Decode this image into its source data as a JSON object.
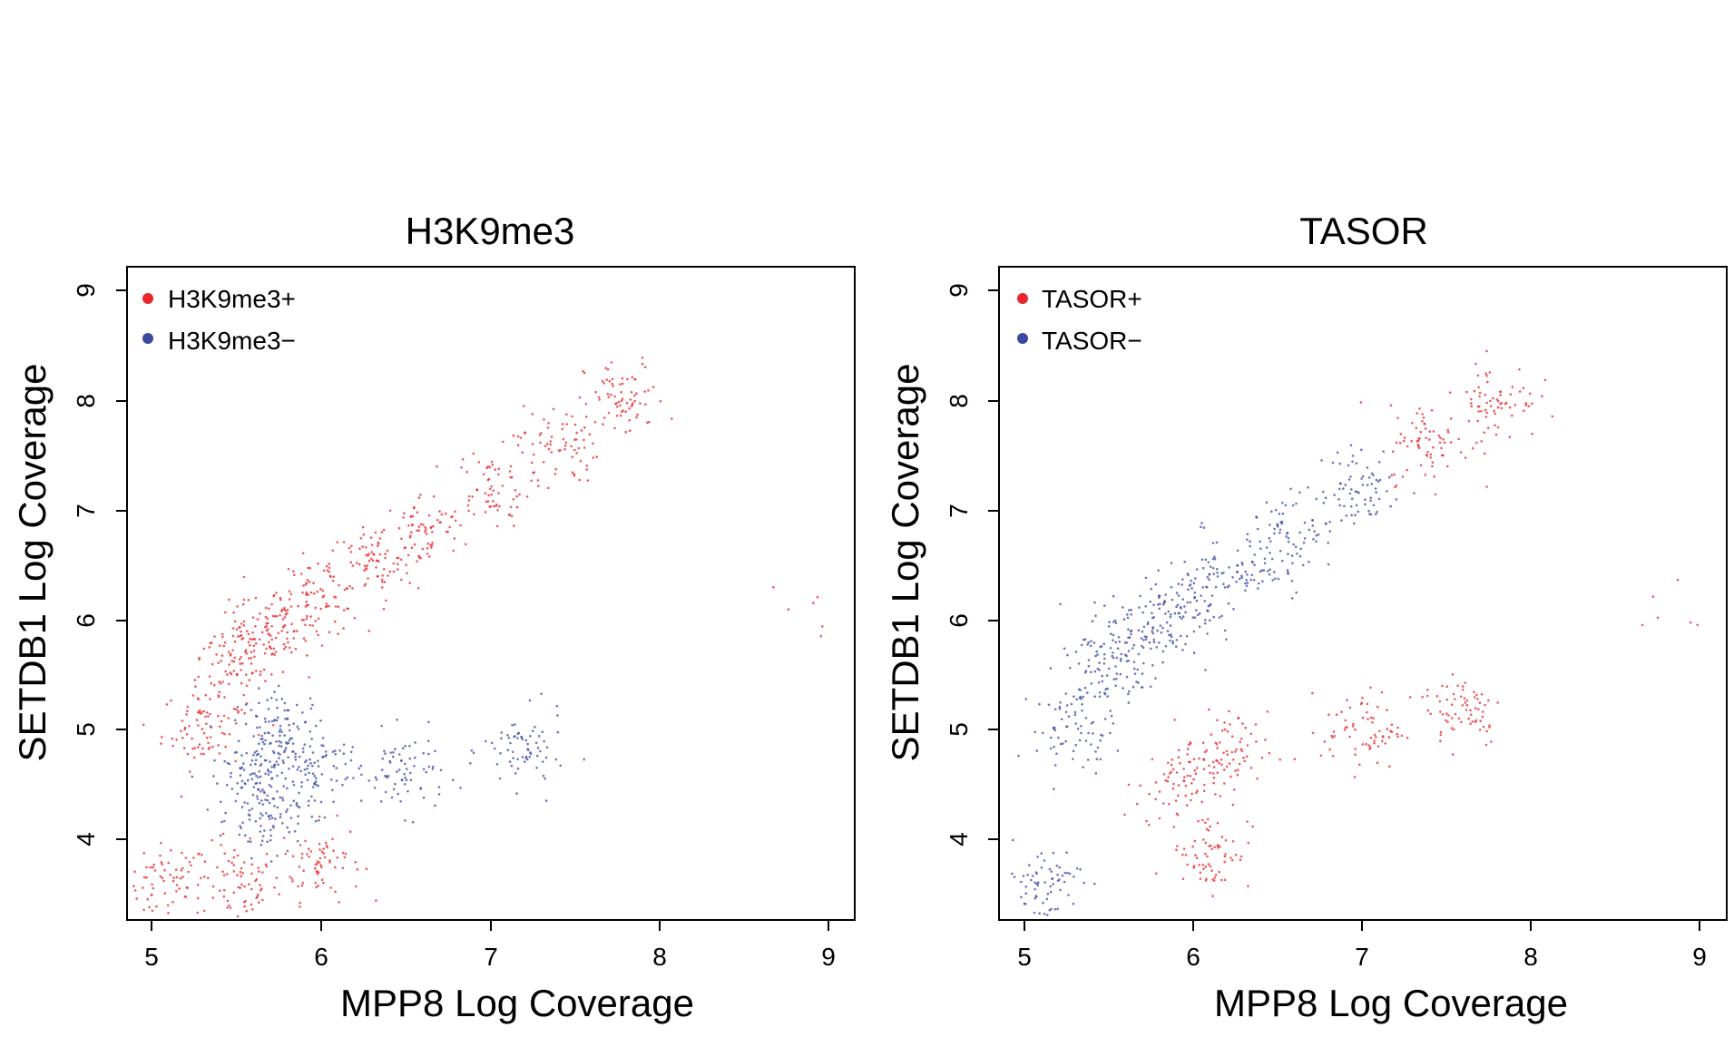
{
  "chart_data": [
    {
      "type": "scatter",
      "title": "H3K9me3",
      "xlabel": "MPP8 Log Coverage",
      "ylabel": "SETDB1 Log Coverage",
      "xlim": [
        4.85,
        9.15
      ],
      "ylim": [
        3.3,
        9.2
      ],
      "xticks": [
        "5",
        "6",
        "7",
        "8",
        "9"
      ],
      "yticks": [
        "4",
        "5",
        "6",
        "7",
        "8",
        "9"
      ],
      "legend_position": "top-left",
      "series": [
        {
          "name": "H3K9me3+",
          "color": "#e8262b",
          "summary_points": [
            [
              5.1,
              3.6
            ],
            [
              5.5,
              3.6
            ],
            [
              6.0,
              3.8
            ],
            [
              5.3,
              5.0
            ],
            [
              5.45,
              5.5
            ],
            [
              5.6,
              5.8
            ],
            [
              5.8,
              6.0
            ],
            [
              6.0,
              6.2
            ],
            [
              6.3,
              6.5
            ],
            [
              6.6,
              6.8
            ],
            [
              7.0,
              7.2
            ],
            [
              7.4,
              7.6
            ],
            [
              7.8,
              8.0
            ],
            [
              8.8,
              6.1
            ]
          ]
        },
        {
          "name": "H3K9me3−",
          "color": "#3a4aa0",
          "summary_points": [
            [
              5.6,
              4.5
            ],
            [
              5.7,
              4.8
            ],
            [
              5.8,
              5.0
            ],
            [
              6.0,
              4.6
            ],
            [
              6.5,
              4.6
            ],
            [
              7.2,
              4.8
            ],
            [
              5.7,
              4.2
            ]
          ]
        }
      ]
    },
    {
      "type": "scatter",
      "title": "TASOR",
      "xlabel": "MPP8 Log Coverage",
      "ylabel": "SETDB1 Log Coverage",
      "xlim": [
        4.85,
        9.15
      ],
      "ylim": [
        3.3,
        9.2
      ],
      "xticks": [
        "5",
        "6",
        "7",
        "8",
        "9"
      ],
      "yticks": [
        "4",
        "5",
        "6",
        "7",
        "8",
        "9"
      ],
      "legend_position": "top-left",
      "series": [
        {
          "name": "TASOR+",
          "color": "#e8262b",
          "summary_points": [
            [
              6.1,
              3.9
            ],
            [
              5.9,
              4.5
            ],
            [
              6.2,
              4.8
            ],
            [
              7.0,
              5.0
            ],
            [
              7.6,
              5.2
            ],
            [
              7.4,
              7.6
            ],
            [
              7.8,
              8.0
            ],
            [
              8.8,
              6.1
            ]
          ]
        },
        {
          "name": "TASOR−",
          "color": "#3a4aa0",
          "summary_points": [
            [
              5.1,
              3.6
            ],
            [
              5.3,
              5.0
            ],
            [
              5.45,
              5.5
            ],
            [
              5.6,
              5.8
            ],
            [
              5.8,
              6.0
            ],
            [
              6.0,
              6.2
            ],
            [
              6.3,
              6.5
            ],
            [
              6.6,
              6.8
            ],
            [
              7.0,
              7.2
            ]
          ]
        }
      ]
    }
  ]
}
